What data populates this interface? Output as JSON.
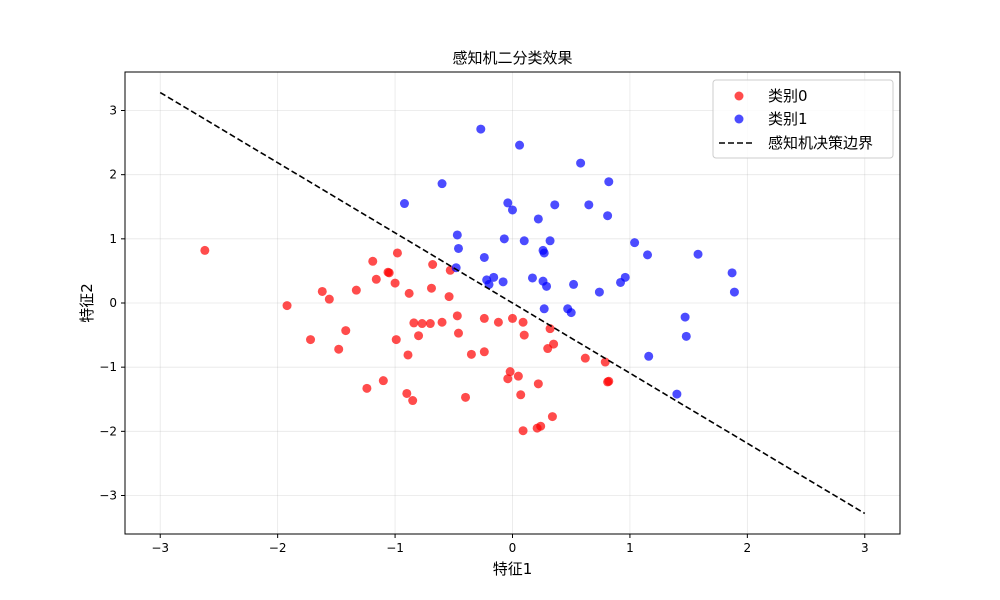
{
  "chart_data": {
    "type": "scatter",
    "title": "感知机二分类效果",
    "xlabel": "特征1",
    "ylabel": "特征2",
    "xlim": [
      -3.3,
      3.3
    ],
    "ylim": [
      -3.6,
      3.6
    ],
    "xticks": [
      -3,
      -2,
      -1,
      0,
      1,
      2,
      3
    ],
    "yticks": [
      -3,
      -2,
      -1,
      0,
      1,
      2,
      3
    ],
    "xtick_labels": [
      "−3",
      "−2",
      "−1",
      "0",
      "1",
      "2",
      "3"
    ],
    "ytick_labels": [
      "−3",
      "−2",
      "−1",
      "0",
      "1",
      "2",
      "3"
    ],
    "grid": true,
    "legend_position": "top-right",
    "series": [
      {
        "name": "类别0",
        "kind": "scatter",
        "color": "#ff0000",
        "points": [
          [
            -2.62,
            0.82
          ],
          [
            -1.92,
            -0.04
          ],
          [
            -1.62,
            0.18
          ],
          [
            -1.56,
            0.06
          ],
          [
            -1.72,
            -0.57
          ],
          [
            -1.42,
            -0.43
          ],
          [
            -1.48,
            -0.72
          ],
          [
            -1.33,
            0.2
          ],
          [
            -1.19,
            0.65
          ],
          [
            -1.16,
            0.37
          ],
          [
            -1.06,
            0.48
          ],
          [
            -1.05,
            0.47
          ],
          [
            -1.0,
            0.31
          ],
          [
            -0.98,
            0.78
          ],
          [
            -0.99,
            -0.57
          ],
          [
            -0.88,
            0.15
          ],
          [
            -0.84,
            -0.31
          ],
          [
            -0.8,
            -0.51
          ],
          [
            -0.77,
            -0.32
          ],
          [
            -0.7,
            -0.32
          ],
          [
            -0.69,
            0.23
          ],
          [
            -0.68,
            0.6
          ],
          [
            -0.6,
            -0.3
          ],
          [
            -0.54,
            0.1
          ],
          [
            -0.53,
            0.51
          ],
          [
            -0.47,
            -0.2
          ],
          [
            -0.46,
            -0.47
          ],
          [
            -0.35,
            -0.8
          ],
          [
            -0.24,
            -0.24
          ],
          [
            -0.24,
            -0.76
          ],
          [
            -0.12,
            -0.3
          ],
          [
            0.0,
            -0.24
          ],
          [
            0.09,
            -0.3
          ],
          [
            0.1,
            -0.5
          ],
          [
            0.32,
            -0.4
          ],
          [
            0.3,
            -0.71
          ],
          [
            0.35,
            -0.64
          ],
          [
            0.62,
            -0.86
          ],
          [
            0.79,
            -0.92
          ],
          [
            -0.89,
            -0.81
          ],
          [
            -1.1,
            -1.21
          ],
          [
            -1.24,
            -1.33
          ],
          [
            -0.9,
            -1.41
          ],
          [
            -0.85,
            -1.52
          ],
          [
            -0.4,
            -1.47
          ],
          [
            -0.04,
            -1.18
          ],
          [
            -0.02,
            -1.07
          ],
          [
            0.05,
            -1.14
          ],
          [
            0.07,
            -1.43
          ],
          [
            0.22,
            -1.26
          ],
          [
            0.09,
            -1.99
          ],
          [
            0.21,
            -1.95
          ],
          [
            0.24,
            -1.92
          ],
          [
            0.34,
            -1.77
          ],
          [
            0.81,
            -1.23
          ],
          [
            0.82,
            -1.22
          ]
        ]
      },
      {
        "name": "类别1",
        "kind": "scatter",
        "color": "#0000ff",
        "points": [
          [
            -0.27,
            2.71
          ],
          [
            0.06,
            2.46
          ],
          [
            -0.6,
            1.86
          ],
          [
            -0.92,
            1.55
          ],
          [
            -0.04,
            1.56
          ],
          [
            0.0,
            1.45
          ],
          [
            0.22,
            1.31
          ],
          [
            0.36,
            1.53
          ],
          [
            0.58,
            2.18
          ],
          [
            0.82,
            1.89
          ],
          [
            0.65,
            1.53
          ],
          [
            0.81,
            1.36
          ],
          [
            -0.47,
            1.06
          ],
          [
            -0.46,
            0.85
          ],
          [
            -0.07,
            1.0
          ],
          [
            0.1,
            0.97
          ],
          [
            0.32,
            0.97
          ],
          [
            0.26,
            0.82
          ],
          [
            0.27,
            0.78
          ],
          [
            -0.24,
            0.71
          ],
          [
            -0.48,
            0.55
          ],
          [
            -0.16,
            0.4
          ],
          [
            -0.22,
            0.36
          ],
          [
            -0.2,
            0.29
          ],
          [
            -0.08,
            0.33
          ],
          [
            0.17,
            0.39
          ],
          [
            0.26,
            0.34
          ],
          [
            0.29,
            0.26
          ],
          [
            0.52,
            0.29
          ],
          [
            0.74,
            0.17
          ],
          [
            0.92,
            0.32
          ],
          [
            0.96,
            0.4
          ],
          [
            1.04,
            0.94
          ],
          [
            1.15,
            0.75
          ],
          [
            1.58,
            0.76
          ],
          [
            1.87,
            0.47
          ],
          [
            1.89,
            0.17
          ],
          [
            1.47,
            -0.22
          ],
          [
            1.48,
            -0.52
          ],
          [
            1.16,
            -0.83
          ],
          [
            1.4,
            -1.42
          ],
          [
            0.27,
            -0.09
          ],
          [
            0.47,
            -0.09
          ],
          [
            0.5,
            -0.15
          ]
        ]
      },
      {
        "name": "感知机决策边界",
        "kind": "line",
        "color": "#000000",
        "dash": "dashed",
        "points": [
          [
            -3,
            3.28
          ],
          [
            3,
            -3.28
          ]
        ]
      }
    ]
  }
}
